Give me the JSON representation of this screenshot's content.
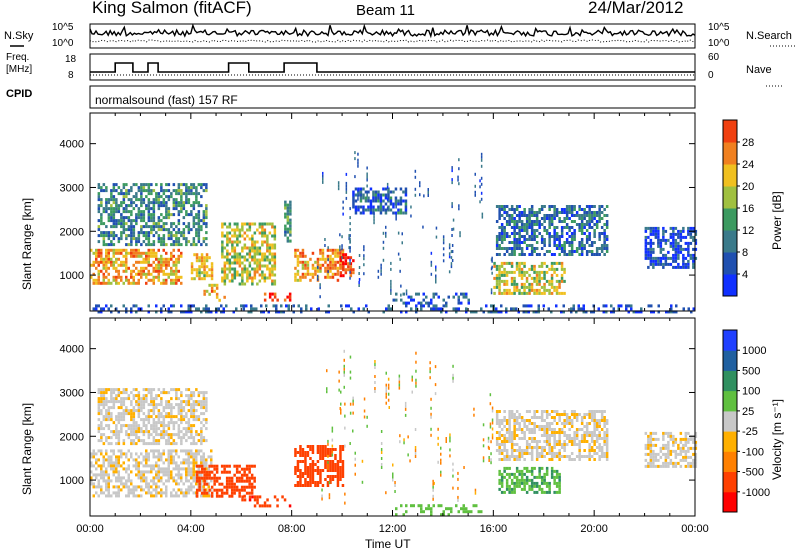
{
  "header": {
    "station": "King Salmon (fitACF)",
    "beam": "Beam 11",
    "date": "24/Mar/2012"
  },
  "top_panel": {
    "nsky_label": "N.Sky",
    "left_ticks": [
      "10^5",
      "10^0"
    ],
    "right_ticks": [
      "10^5",
      "10^0"
    ],
    "nsearch_label": "N.Search",
    "freq_label_1": "Freq.",
    "freq_label_2": "[MHz]",
    "freq_ticks": [
      "18",
      "8"
    ],
    "nave_ticks": [
      "60",
      "0"
    ],
    "nave_label": "Nave",
    "cpid_label": "CPID",
    "cpid_text": "normalsound (fast) 157 RF"
  },
  "colors": {
    "power_scale": [
      "#1030ff",
      "#2050b0",
      "#3a7a8a",
      "#3c9a60",
      "#a0c040",
      "#f0c020",
      "#f08020",
      "#f04010",
      "#ff0000"
    ],
    "velocity_scale": [
      "#ff0000",
      "#ff4000",
      "#ff8000",
      "#ffb000",
      "#c8c8c8",
      "#60c040",
      "#309060",
      "#2060a0",
      "#2040ff"
    ]
  },
  "chart_data": [
    {
      "type": "heatmap",
      "name": "power",
      "ylabel": "Slant Range [km]",
      "xlabel": "",
      "yticks": [
        "1000",
        "2000",
        "3000",
        "4000"
      ],
      "ylim": [
        180,
        4700
      ],
      "xlim": [
        0,
        24
      ],
      "colorbar_label": "Power [dB]",
      "colorbar_ticks": [
        "4",
        "8",
        "12",
        "16",
        "20",
        "24",
        "28"
      ],
      "clim": [
        0,
        30
      ],
      "regions": [
        {
          "t0": 0.0,
          "t1": 3.6,
          "r0": 800,
          "r1": 1600,
          "v": 20
        },
        {
          "t0": 0.3,
          "t1": 4.6,
          "r0": 1700,
          "r1": 3100,
          "v": 9
        },
        {
          "t0": 4.0,
          "t1": 4.8,
          "r0": 900,
          "r1": 1500,
          "v": 18
        },
        {
          "t0": 4.5,
          "t1": 5.3,
          "r0": 450,
          "r1": 800,
          "v": 20
        },
        {
          "t0": 5.2,
          "t1": 7.3,
          "r0": 800,
          "r1": 2200,
          "v": 16
        },
        {
          "t0": 6.8,
          "t1": 7.9,
          "r0": 430,
          "r1": 600,
          "v": 26
        },
        {
          "t0": 7.7,
          "t1": 7.9,
          "r0": 1800,
          "r1": 2700,
          "v": 10
        },
        {
          "t0": 8.1,
          "t1": 10.0,
          "r0": 900,
          "r1": 1600,
          "v": 21
        },
        {
          "t0": 9.9,
          "t1": 10.4,
          "r0": 1000,
          "r1": 1500,
          "v": 26
        },
        {
          "t0": 10.4,
          "t1": 12.5,
          "r0": 2400,
          "r1": 3000,
          "v": 6
        },
        {
          "t0": 12.0,
          "t1": 15.0,
          "r0": 350,
          "r1": 600,
          "v": 5
        },
        {
          "t0": 16.0,
          "t1": 18.8,
          "r0": 600,
          "r1": 1300,
          "v": 16
        },
        {
          "t0": 16.1,
          "t1": 20.5,
          "r0": 1500,
          "r1": 2600,
          "v": 7
        },
        {
          "t0": 22.0,
          "t1": 24.0,
          "r0": 1200,
          "r1": 2100,
          "v": 5
        },
        {
          "t0": 0.0,
          "t1": 24.0,
          "r0": 180,
          "r1": 330,
          "v": 5
        }
      ]
    },
    {
      "type": "heatmap",
      "name": "velocity",
      "ylabel": "Slant Range [km]",
      "xlabel": "Time UT",
      "yticks": [
        "1000",
        "2000",
        "3000",
        "4000"
      ],
      "ylim": [
        180,
        4700
      ],
      "xlim": [
        0,
        24
      ],
      "xticks": [
        "00:00",
        "04:00",
        "08:00",
        "12:00",
        "16:00",
        "20:00",
        "00:00"
      ],
      "colorbar_label": "Velocity [m s⁻¹]",
      "colorbar_ticks": [
        "1000",
        "500",
        "100",
        "25",
        "-25",
        "-100",
        "-500",
        "-1000"
      ],
      "regions": [
        {
          "t0": 0.0,
          "t1": 4.8,
          "r0": 650,
          "r1": 1700,
          "v": 0
        },
        {
          "t0": 0.3,
          "t1": 4.6,
          "r0": 1800,
          "r1": 3100,
          "v": 0
        },
        {
          "t0": 4.2,
          "t1": 6.5,
          "r0": 650,
          "r1": 1350,
          "v": -300
        },
        {
          "t0": 6.0,
          "t1": 7.9,
          "r0": 400,
          "r1": 650,
          "v": -400
        },
        {
          "t0": 8.1,
          "t1": 10.0,
          "r0": 900,
          "r1": 1800,
          "v": -300
        },
        {
          "t0": 12.0,
          "t1": 15.5,
          "r0": 200,
          "r1": 450,
          "v": 60
        },
        {
          "t0": 16.2,
          "t1": 18.6,
          "r0": 700,
          "r1": 1300,
          "v": 80
        },
        {
          "t0": 16.1,
          "t1": 20.5,
          "r0": 1500,
          "r1": 2600,
          "v": 0
        },
        {
          "t0": 22.0,
          "t1": 24.0,
          "r0": 1300,
          "r1": 2100,
          "v": 0
        }
      ]
    }
  ]
}
